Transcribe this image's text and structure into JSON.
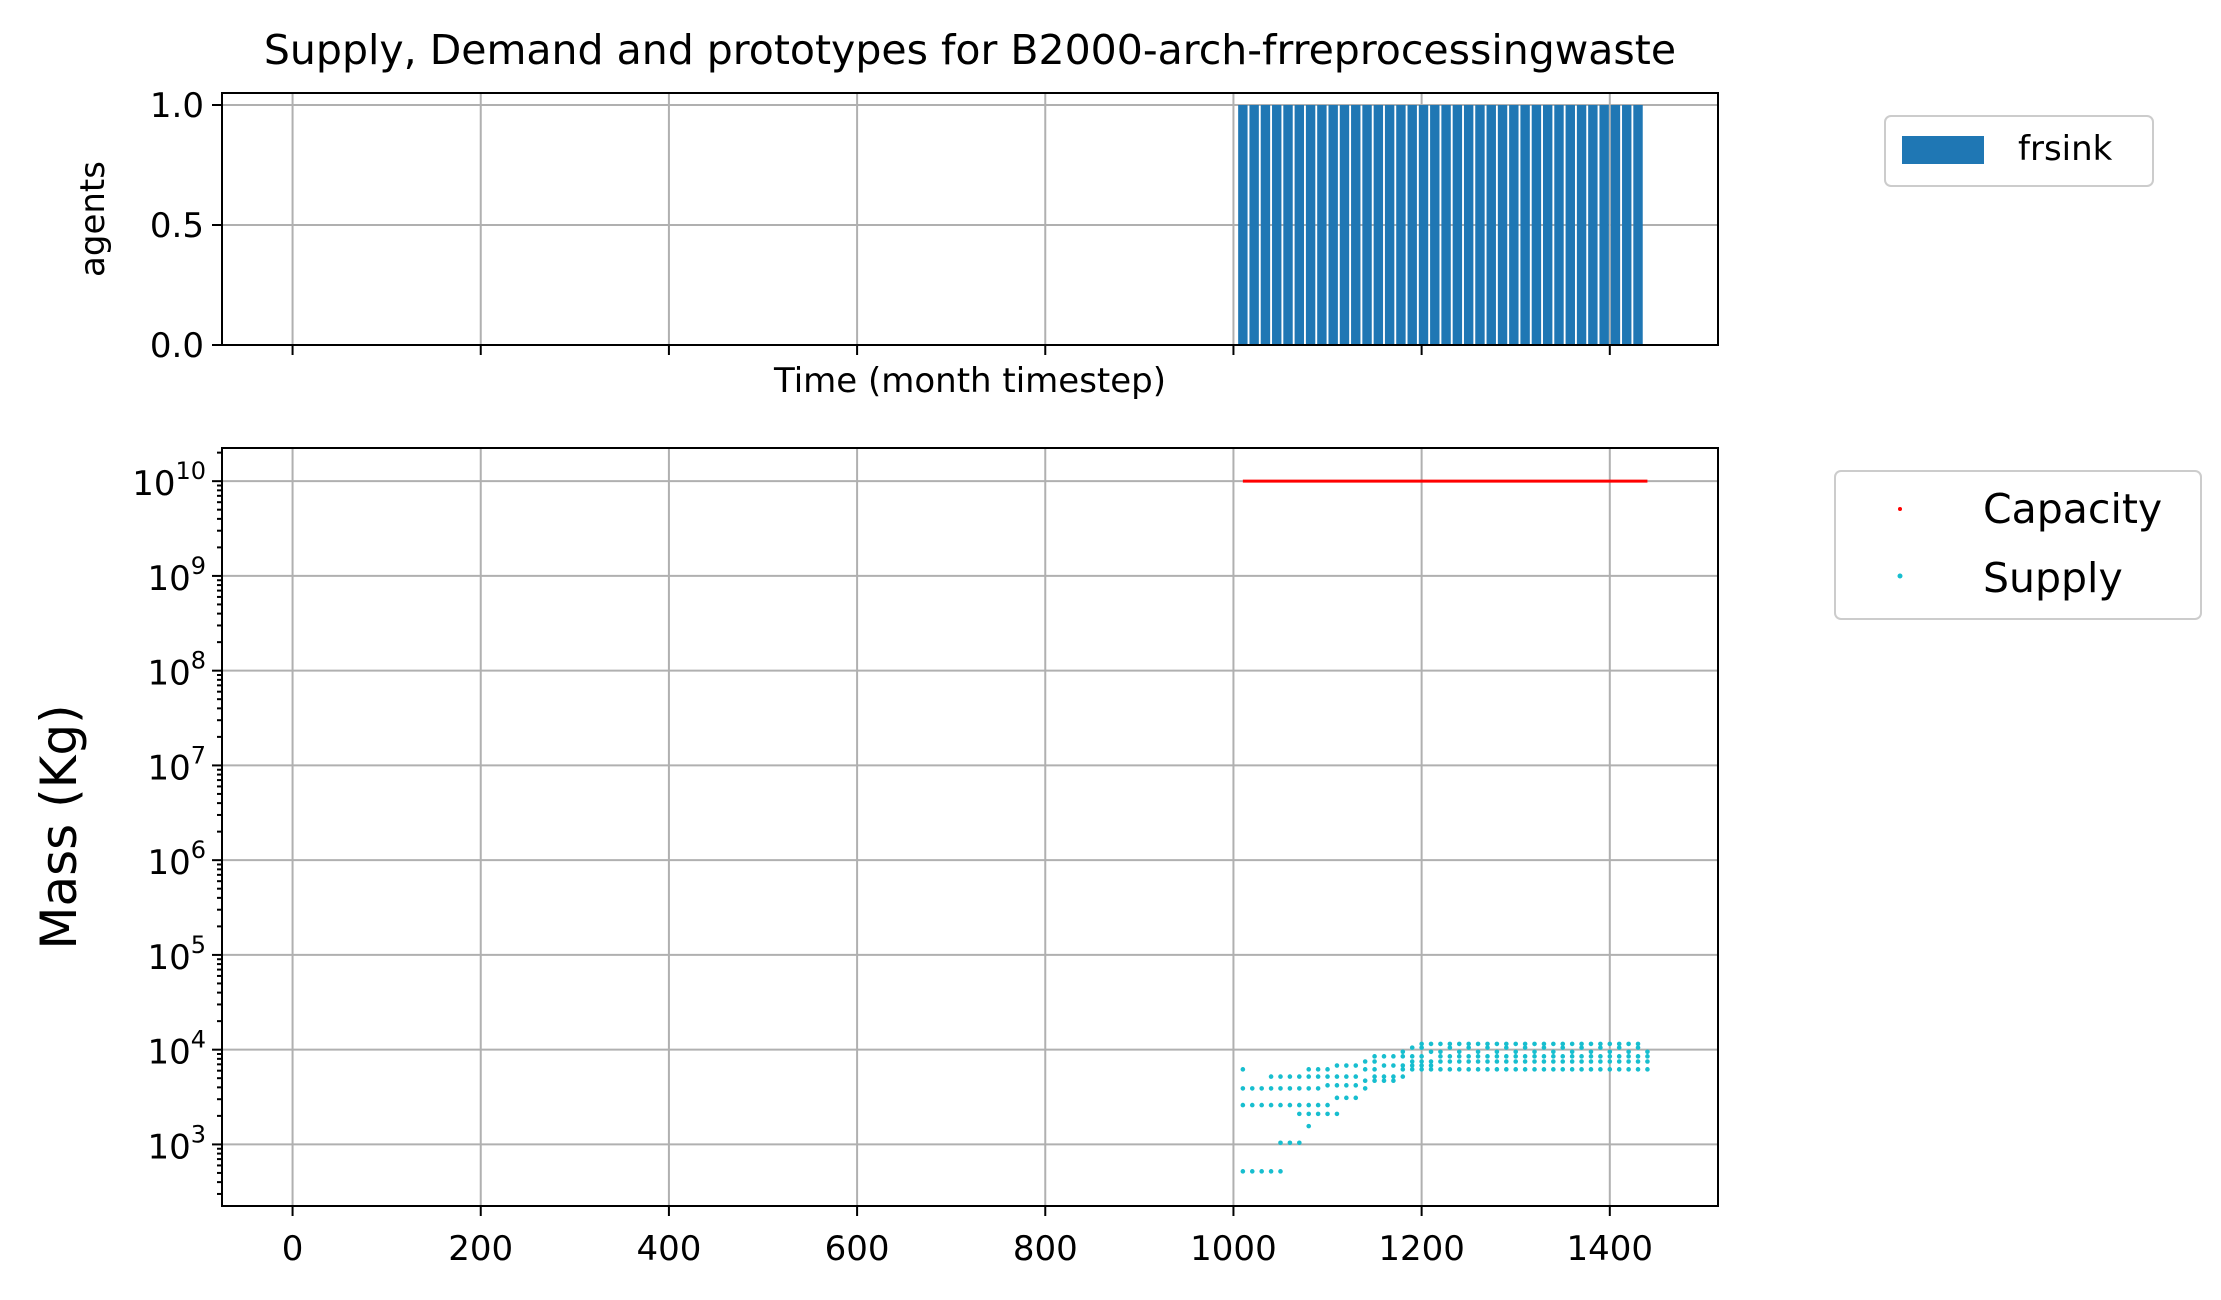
{
  "chart_data": [
    {
      "type": "bar",
      "title": "Supply, Demand and prototypes for B2000-arch-frreprocessingwaste",
      "xlabel": "Time (month timestep)",
      "ylabel": "agents",
      "xlim": [
        -75,
        1515
      ],
      "ylim": [
        0,
        1.05
      ],
      "yticks": [
        {
          "value": 0.0,
          "label": "0.0"
        },
        {
          "value": 0.5,
          "label": "0.5"
        },
        {
          "value": 1.0,
          "label": "1.0"
        }
      ],
      "grid": true,
      "legend_position": "upper-left-outside",
      "series": [
        {
          "name": "frsink",
          "color": "#1f77b4",
          "x_start": 1010,
          "x_end": 1440,
          "bar_width": 10,
          "bar_step": 12,
          "value": 1
        }
      ]
    },
    {
      "type": "scatter",
      "xlabel": "",
      "ylabel": "Mass (Kg)",
      "xscale": "linear",
      "yscale": "log",
      "xlim": [
        -75,
        1515
      ],
      "ylim_log10": [
        2.35,
        10.35
      ],
      "xticks": [
        {
          "value": 0,
          "label": "0"
        },
        {
          "value": 200,
          "label": "200"
        },
        {
          "value": 400,
          "label": "400"
        },
        {
          "value": 600,
          "label": "600"
        },
        {
          "value": 800,
          "label": "800"
        },
        {
          "value": 1000,
          "label": "1000"
        },
        {
          "value": 1200,
          "label": "1200"
        },
        {
          "value": 1400,
          "label": "1400"
        }
      ],
      "yticks": [
        {
          "exp": 3,
          "base": "10",
          "sup": "3"
        },
        {
          "exp": 4,
          "base": "10",
          "sup": "4"
        },
        {
          "exp": 5,
          "base": "10",
          "sup": "5"
        },
        {
          "exp": 6,
          "base": "10",
          "sup": "6"
        },
        {
          "exp": 7,
          "base": "10",
          "sup": "7"
        },
        {
          "exp": 8,
          "base": "10",
          "sup": "8"
        },
        {
          "exp": 9,
          "base": "10",
          "sup": "9"
        },
        {
          "exp": 10,
          "base": "10",
          "sup": "10"
        }
      ],
      "grid": true,
      "legend_position": "upper-left-outside",
      "series": [
        {
          "name": "Capacity",
          "color": "#ff0000",
          "x_start": 1010,
          "x_end": 1440,
          "value": 10000000000
        },
        {
          "name": "Supply",
          "color": "#17becf",
          "points": [
            [
              1010,
              520
            ],
            [
              1010,
              2600
            ],
            [
              1010,
              3900
            ],
            [
              1010,
              6200
            ],
            [
              1020,
              520
            ],
            [
              1020,
              2600
            ],
            [
              1020,
              3900
            ],
            [
              1030,
              520
            ],
            [
              1030,
              2600
            ],
            [
              1030,
              3900
            ],
            [
              1040,
              520
            ],
            [
              1040,
              2600
            ],
            [
              1040,
              3900
            ],
            [
              1040,
              5200
            ],
            [
              1050,
              520
            ],
            [
              1050,
              1040
            ],
            [
              1050,
              2600
            ],
            [
              1050,
              3900
            ],
            [
              1050,
              5200
            ],
            [
              1060,
              1040
            ],
            [
              1060,
              2600
            ],
            [
              1060,
              3900
            ],
            [
              1060,
              5200
            ],
            [
              1070,
              1040
            ],
            [
              1070,
              2100
            ],
            [
              1070,
              2600
            ],
            [
              1070,
              3900
            ],
            [
              1070,
              5200
            ],
            [
              1080,
              1560
            ],
            [
              1080,
              2100
            ],
            [
              1080,
              2600
            ],
            [
              1080,
              3900
            ],
            [
              1080,
              5200
            ],
            [
              1080,
              6200
            ],
            [
              1090,
              2100
            ],
            [
              1090,
              2600
            ],
            [
              1090,
              3900
            ],
            [
              1090,
              5200
            ],
            [
              1090,
              6200
            ],
            [
              1100,
              2100
            ],
            [
              1100,
              2600
            ],
            [
              1100,
              4200
            ],
            [
              1100,
              5200
            ],
            [
              1100,
              6200
            ],
            [
              1110,
              2100
            ],
            [
              1110,
              3100
            ],
            [
              1110,
              4200
            ],
            [
              1110,
              5200
            ],
            [
              1110,
              6800
            ],
            [
              1120,
              3100
            ],
            [
              1120,
              4200
            ],
            [
              1120,
              5200
            ],
            [
              1120,
              6800
            ],
            [
              1130,
              3100
            ],
            [
              1130,
              4200
            ],
            [
              1130,
              5200
            ],
            [
              1130,
              6800
            ],
            [
              1140,
              3900
            ],
            [
              1140,
              4700
            ],
            [
              1140,
              6200
            ],
            [
              1140,
              7500
            ],
            [
              1150,
              4700
            ],
            [
              1150,
              5200
            ],
            [
              1150,
              6200
            ],
            [
              1150,
              7500
            ],
            [
              1150,
              8500
            ],
            [
              1160,
              4700
            ],
            [
              1160,
              5200
            ],
            [
              1160,
              6800
            ],
            [
              1160,
              8500
            ],
            [
              1170,
              4700
            ],
            [
              1170,
              5200
            ],
            [
              1170,
              6800
            ],
            [
              1170,
              8500
            ],
            [
              1180,
              5200
            ],
            [
              1180,
              6200
            ],
            [
              1180,
              6800
            ],
            [
              1180,
              8500
            ],
            [
              1180,
              9500
            ],
            [
              1190,
              6200
            ],
            [
              1190,
              6800
            ],
            [
              1190,
              7500
            ],
            [
              1190,
              8500
            ],
            [
              1190,
              10500
            ],
            [
              1200,
              6200
            ],
            [
              1200,
              6800
            ],
            [
              1200,
              7500
            ],
            [
              1200,
              8500
            ],
            [
              1200,
              10500
            ],
            [
              1200,
              11500
            ],
            [
              1210,
              6200
            ],
            [
              1210,
              6800
            ],
            [
              1210,
              7500
            ],
            [
              1210,
              9500
            ],
            [
              1210,
              11500
            ],
            [
              1220,
              6200
            ],
            [
              1220,
              7500
            ],
            [
              1220,
              8500
            ],
            [
              1220,
              9500
            ],
            [
              1220,
              11500
            ],
            [
              1230,
              6200
            ],
            [
              1230,
              7500
            ],
            [
              1230,
              8500
            ],
            [
              1230,
              10500
            ],
            [
              1230,
              11500
            ],
            [
              1240,
              6200
            ],
            [
              1240,
              7500
            ],
            [
              1240,
              8500
            ],
            [
              1240,
              9500
            ],
            [
              1240,
              11500
            ],
            [
              1250,
              6200
            ],
            [
              1250,
              7500
            ],
            [
              1250,
              8500
            ],
            [
              1250,
              10500
            ],
            [
              1250,
              11500
            ],
            [
              1260,
              6200
            ],
            [
              1260,
              7500
            ],
            [
              1260,
              8500
            ],
            [
              1260,
              9500
            ],
            [
              1260,
              11500
            ],
            [
              1270,
              6200
            ],
            [
              1270,
              7500
            ],
            [
              1270,
              8500
            ],
            [
              1270,
              10500
            ],
            [
              1270,
              11500
            ],
            [
              1280,
              6200
            ],
            [
              1280,
              7500
            ],
            [
              1280,
              8500
            ],
            [
              1280,
              9500
            ],
            [
              1280,
              11500
            ],
            [
              1290,
              6200
            ],
            [
              1290,
              7500
            ],
            [
              1290,
              8500
            ],
            [
              1290,
              10500
            ],
            [
              1290,
              11500
            ],
            [
              1300,
              6200
            ],
            [
              1300,
              7500
            ],
            [
              1300,
              8500
            ],
            [
              1300,
              9500
            ],
            [
              1300,
              11500
            ],
            [
              1310,
              6200
            ],
            [
              1310,
              7500
            ],
            [
              1310,
              8500
            ],
            [
              1310,
              10500
            ],
            [
              1310,
              11500
            ],
            [
              1320,
              6200
            ],
            [
              1320,
              7500
            ],
            [
              1320,
              8500
            ],
            [
              1320,
              9500
            ],
            [
              1320,
              11500
            ],
            [
              1330,
              6200
            ],
            [
              1330,
              7500
            ],
            [
              1330,
              8500
            ],
            [
              1330,
              10500
            ],
            [
              1330,
              11500
            ],
            [
              1340,
              6200
            ],
            [
              1340,
              7500
            ],
            [
              1340,
              8500
            ],
            [
              1340,
              9500
            ],
            [
              1340,
              11500
            ],
            [
              1350,
              6200
            ],
            [
              1350,
              7500
            ],
            [
              1350,
              8500
            ],
            [
              1350,
              10500
            ],
            [
              1350,
              11500
            ],
            [
              1360,
              6200
            ],
            [
              1360,
              7500
            ],
            [
              1360,
              8500
            ],
            [
              1360,
              9500
            ],
            [
              1360,
              11500
            ],
            [
              1370,
              6200
            ],
            [
              1370,
              7500
            ],
            [
              1370,
              8500
            ],
            [
              1370,
              10500
            ],
            [
              1370,
              11500
            ],
            [
              1380,
              6200
            ],
            [
              1380,
              7500
            ],
            [
              1380,
              8500
            ],
            [
              1380,
              9500
            ],
            [
              1380,
              11500
            ],
            [
              1390,
              6200
            ],
            [
              1390,
              7500
            ],
            [
              1390,
              8500
            ],
            [
              1390,
              10500
            ],
            [
              1390,
              11500
            ],
            [
              1400,
              6200
            ],
            [
              1400,
              7500
            ],
            [
              1400,
              8500
            ],
            [
              1400,
              9500
            ],
            [
              1400,
              11500
            ],
            [
              1410,
              6200
            ],
            [
              1410,
              7500
            ],
            [
              1410,
              8500
            ],
            [
              1410,
              10500
            ],
            [
              1410,
              11500
            ],
            [
              1420,
              6200
            ],
            [
              1420,
              7500
            ],
            [
              1420,
              8500
            ],
            [
              1420,
              9500
            ],
            [
              1420,
              11500
            ],
            [
              1430,
              6200
            ],
            [
              1430,
              7500
            ],
            [
              1430,
              8500
            ],
            [
              1430,
              10500
            ],
            [
              1430,
              11500
            ],
            [
              1440,
              6200
            ],
            [
              1440,
              7500
            ],
            [
              1440,
              8500
            ],
            [
              1440,
              9500
            ]
          ]
        }
      ]
    }
  ]
}
